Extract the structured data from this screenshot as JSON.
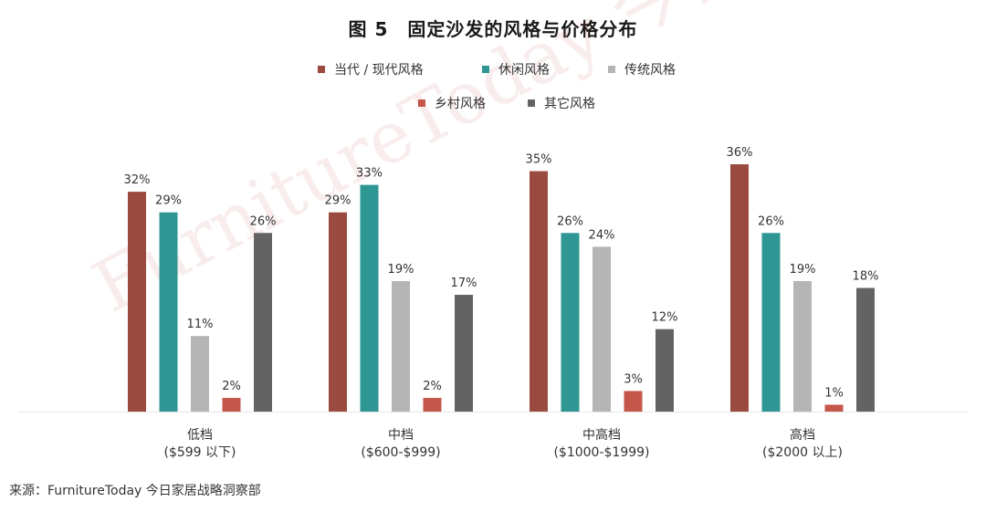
{
  "chart_data": {
    "type": "bar",
    "title": "图 5　固定沙发的风格与价格分布",
    "source": "来源：FurnitureToday 今日家居战略洞察部",
    "watermark": "FurnitureToday 今日家居",
    "categories": [
      [
        "低档",
        "($599 以下)"
      ],
      [
        "中档",
        "($600-$999)"
      ],
      [
        "中高档",
        "($1000-$1999)"
      ],
      [
        "高档",
        "($2000 以上)"
      ]
    ],
    "series": [
      {
        "name": "当代 / 现代风格",
        "color": "#9b4a3f",
        "values": [
          32,
          29,
          35,
          36
        ]
      },
      {
        "name": "休闲风格",
        "color": "#2e9693",
        "values": [
          29,
          33,
          26,
          26
        ]
      },
      {
        "name": "传统风格",
        "color": "#b5b5b5",
        "values": [
          11,
          19,
          24,
          19
        ]
      },
      {
        "name": "乡村风格",
        "color": "#c4564a",
        "values": [
          2,
          2,
          3,
          1
        ]
      },
      {
        "name": "其它风格",
        "color": "#636363",
        "values": [
          26,
          17,
          12,
          18
        ]
      }
    ],
    "value_suffix": "%",
    "ylim": [
      0,
      36
    ],
    "legend_position": "top",
    "grid": false
  }
}
